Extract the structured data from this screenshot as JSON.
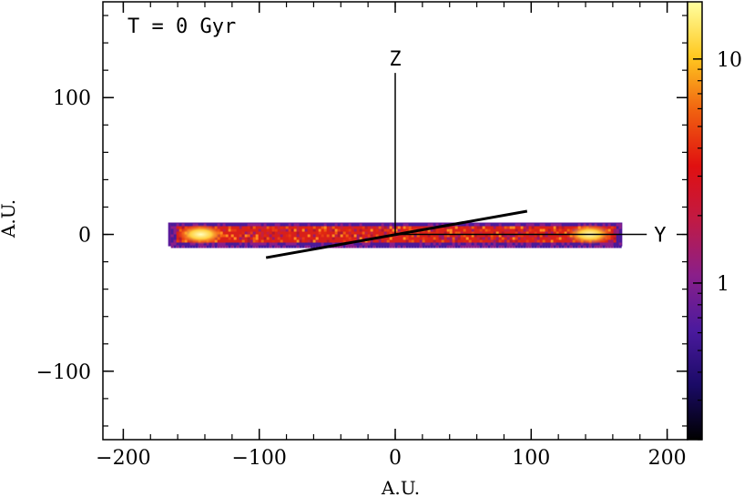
{
  "chart_data": {
    "type": "heatmap",
    "annotation": "T = 0 Gyr",
    "xlabel": "A.U.",
    "ylabel": "A.U.",
    "xlim": [
      -215,
      215
    ],
    "ylim": [
      -150,
      170
    ],
    "x_ticks": [
      {
        "value": -200,
        "label": "−200"
      },
      {
        "value": -100,
        "label": "−100"
      },
      {
        "value": 0,
        "label": "0"
      },
      {
        "value": 100,
        "label": "100"
      },
      {
        "value": 200,
        "label": "200"
      }
    ],
    "y_ticks": [
      {
        "value": -100,
        "label": "−100"
      },
      {
        "value": 0,
        "label": "0"
      },
      {
        "value": 100,
        "label": "100"
      }
    ],
    "x_minor_step": 20,
    "y_minor_step": 20,
    "disk": {
      "x_range": [
        -165,
        165
      ],
      "y_range": [
        -8,
        8
      ],
      "hotspots_x": [
        -143,
        143
      ]
    },
    "axes_overlay": {
      "z_label": "Z",
      "y_label": "Y",
      "z_axis_top": 118,
      "y_axis_end": 185,
      "x_axis_line": [
        [
          -95,
          -17
        ],
        [
          97,
          17
        ]
      ]
    },
    "colorbar": {
      "scale": "log",
      "range": [
        0.2,
        18
      ],
      "ticks": [
        {
          "value": 1,
          "label": "1"
        },
        {
          "value": 10,
          "label": "10"
        }
      ],
      "colormap": [
        "#000000",
        "#1a0a66",
        "#4b1a9e",
        "#8a1f8a",
        "#c01a45",
        "#e01010",
        "#f06010",
        "#ffc820",
        "#ffffa0"
      ]
    }
  }
}
